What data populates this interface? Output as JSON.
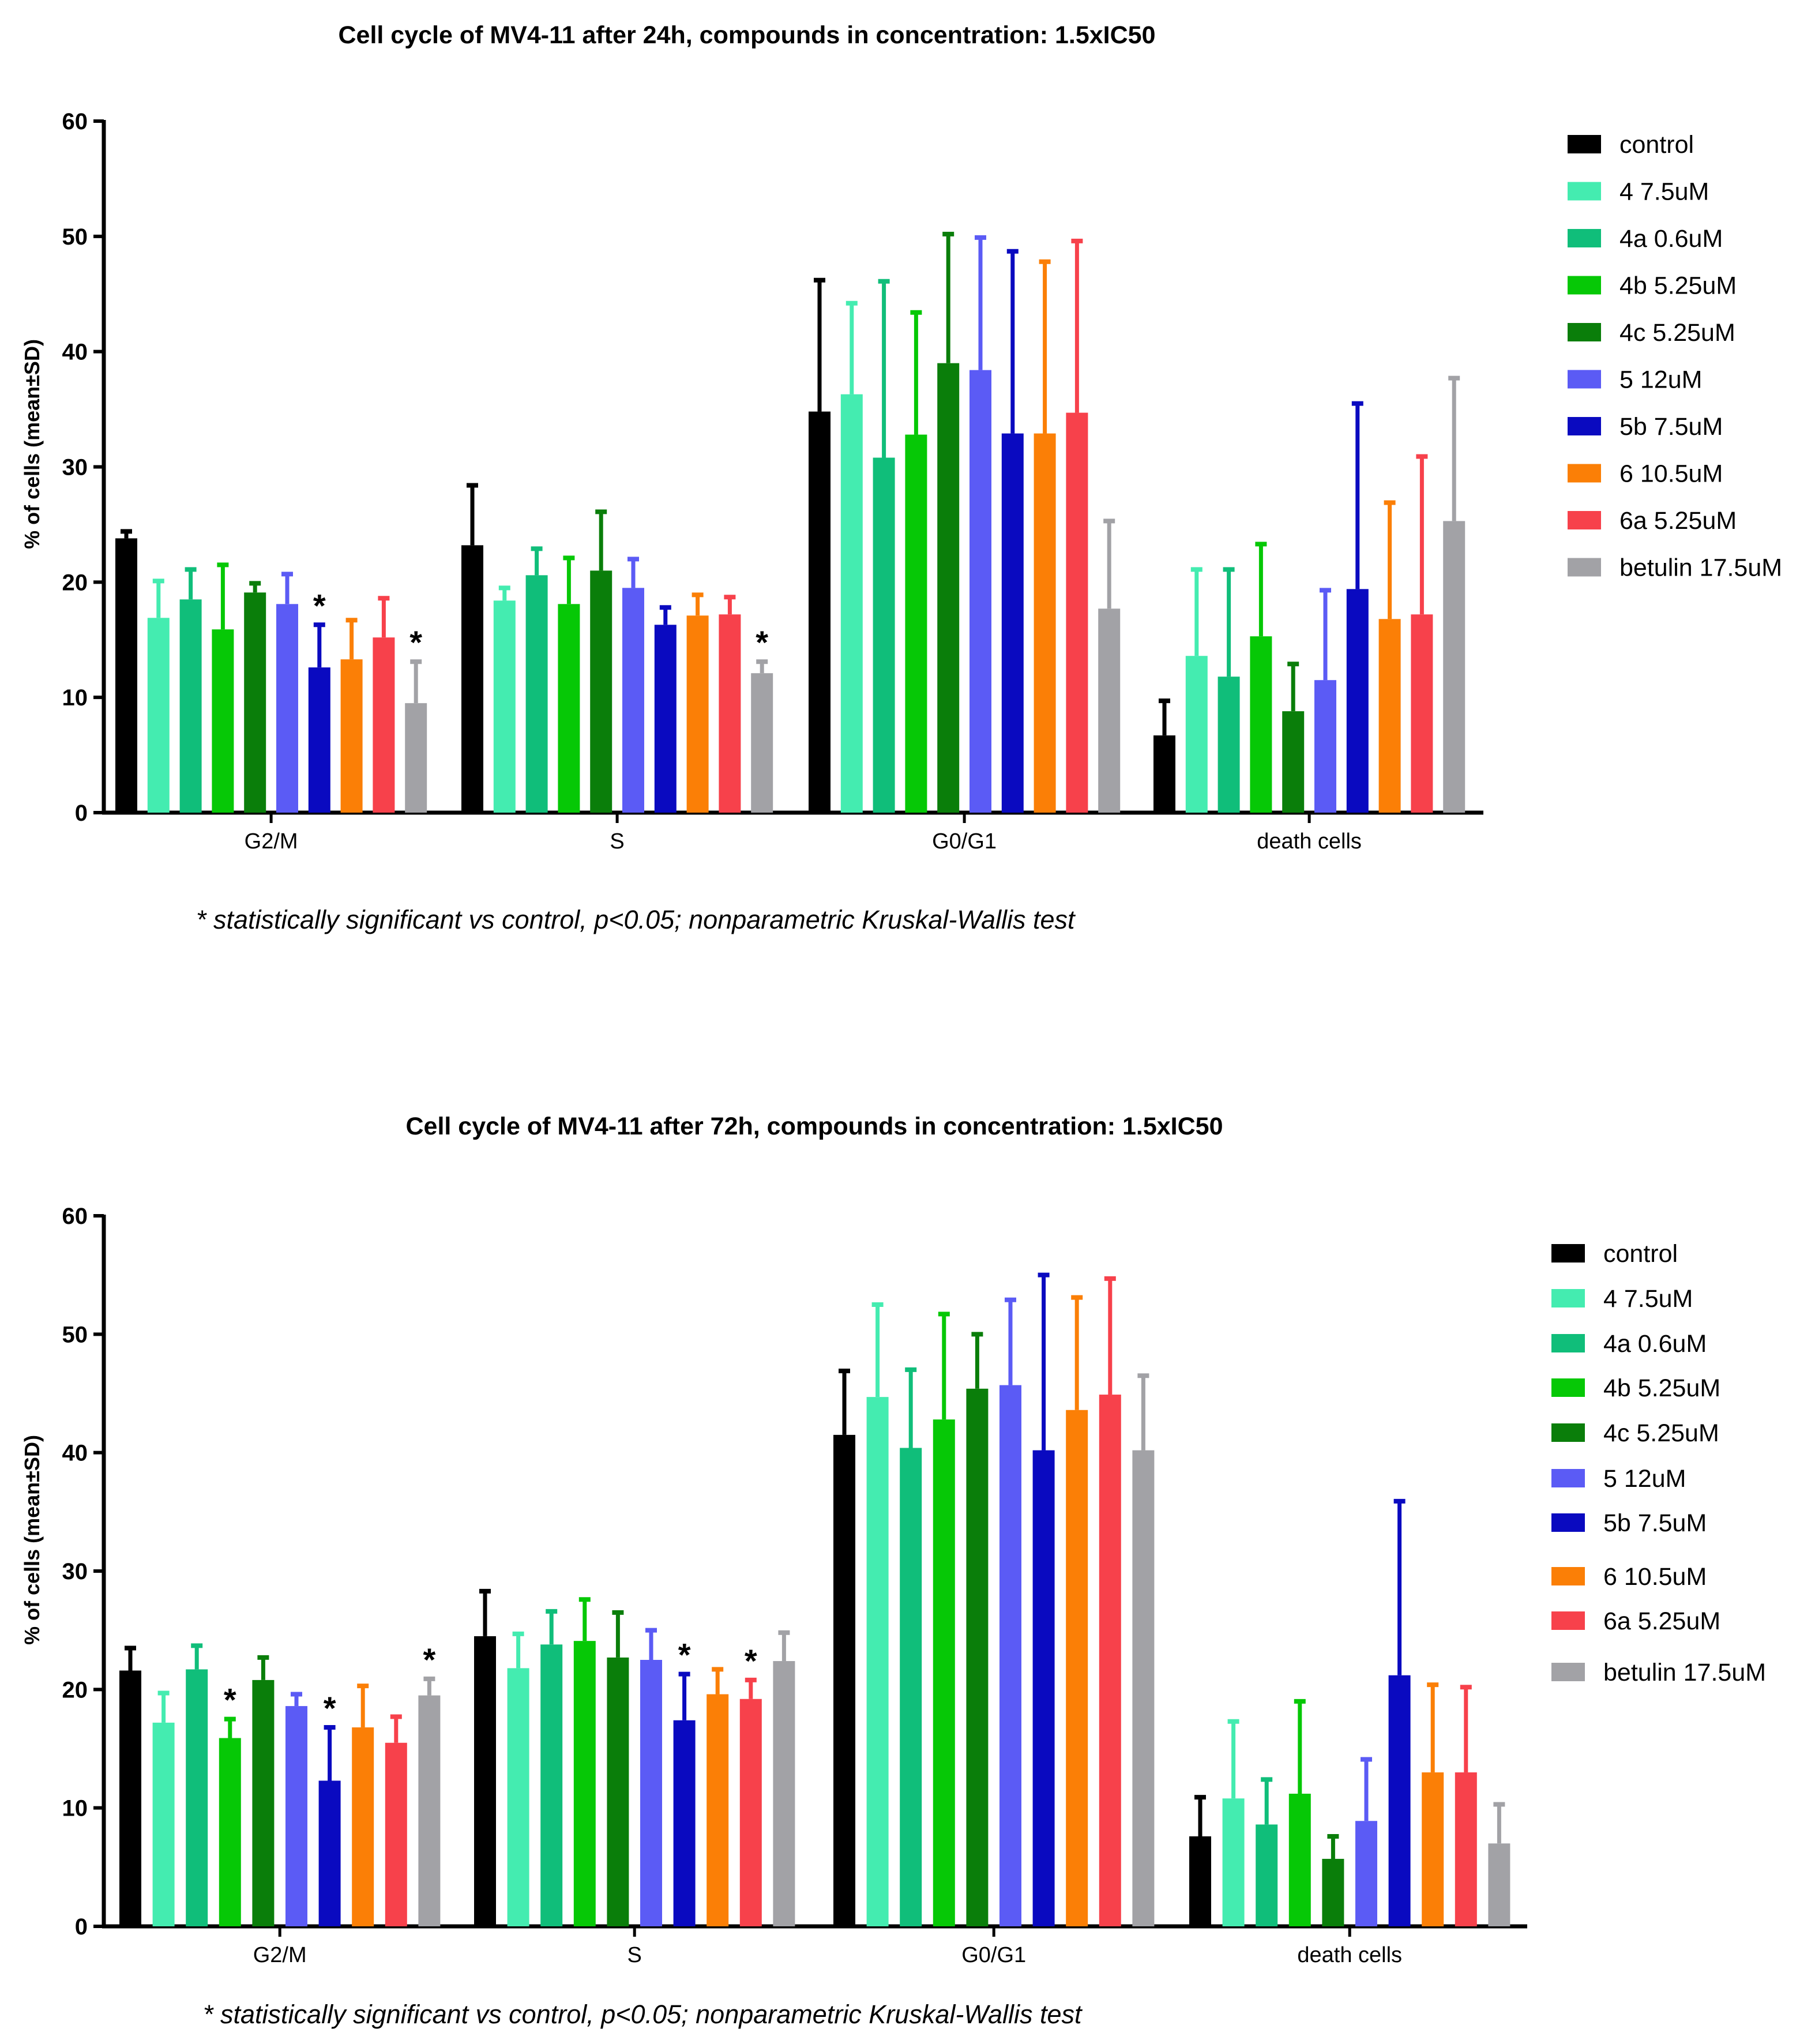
{
  "chart_data": [
    {
      "type": "bar",
      "title": "Cell cycle of  MV4-11 after 24h, compounds in concentration: 1.5xIC50",
      "xlabel": "",
      "ylabel": "% of cells (mean±SD)",
      "ylim": [
        0,
        60
      ],
      "yticks": [
        0,
        10,
        20,
        30,
        40,
        50,
        60
      ],
      "categories": [
        "G2/M",
        "S",
        "G0/G1",
        "death cells"
      ],
      "legend_position": "right",
      "footnote": "* statistically significant vs control, p<0.05; nonparametric Kruskal-Wallis test",
      "series": [
        {
          "name": "control",
          "color": "#000000",
          "values": [
            23.8,
            23.2,
            34.8,
            6.7
          ],
          "errors": [
            0.6,
            5.2,
            11.4,
            3.0
          ]
        },
        {
          "name": "4  7.5uM",
          "color": "#44ecb0",
          "values": [
            16.9,
            18.4,
            36.3,
            13.6
          ],
          "errors": [
            3.2,
            1.1,
            7.9,
            7.5
          ]
        },
        {
          "name": "4a 0.6uM",
          "color": "#10be7a",
          "values": [
            18.5,
            20.6,
            30.8,
            11.8
          ],
          "errors": [
            2.6,
            2.3,
            15.3,
            9.3
          ]
        },
        {
          "name": "4b 5.25uM",
          "color": "#06c806",
          "values": [
            15.9,
            18.1,
            32.8,
            15.3
          ],
          "errors": [
            5.6,
            4.0,
            10.6,
            8.0
          ]
        },
        {
          "name": "4c 5.25uM",
          "color": "#0a7e0a",
          "values": [
            19.1,
            21.0,
            39.0,
            8.8
          ],
          "errors": [
            0.8,
            5.1,
            11.2,
            4.1
          ]
        },
        {
          "name": "5  12uM",
          "color": "#5b5bf5",
          "values": [
            18.1,
            19.5,
            38.4,
            11.5
          ],
          "errors": [
            2.6,
            2.5,
            11.5,
            7.8
          ]
        },
        {
          "name": "5b 7.5uM",
          "color": "#0a0ac0",
          "values": [
            12.6,
            16.3,
            32.9,
            19.4
          ],
          "errors": [
            3.7,
            1.5,
            15.8,
            16.1
          ]
        },
        {
          "name": "6  10.5uM",
          "color": "#fb7f06",
          "values": [
            13.3,
            17.1,
            32.9,
            16.8
          ],
          "errors": [
            3.4,
            1.8,
            14.9,
            10.1
          ]
        },
        {
          "name": "6a 5.25uM",
          "color": "#f7414b",
          "values": [
            15.2,
            17.2,
            34.7,
            17.2
          ],
          "errors": [
            3.4,
            1.5,
            14.9,
            13.7
          ]
        },
        {
          "name": "betulin 17.5uM",
          "color": "#a2a2a6",
          "values": [
            9.5,
            12.1,
            17.7,
            25.3
          ],
          "errors": [
            3.6,
            1.0,
            7.6,
            12.4
          ]
        }
      ],
      "significance": [
        {
          "category": "G2/M",
          "series": "5b 7.5uM",
          "label": "*"
        },
        {
          "category": "G2/M",
          "series": "betulin 17.5uM",
          "label": "*"
        },
        {
          "category": "S",
          "series": "betulin 17.5uM",
          "label": "*"
        }
      ]
    },
    {
      "type": "bar",
      "title": "Cell cycle of MV4-11 after 72h, compounds in concentration: 1.5xIC50",
      "xlabel": "",
      "ylabel": "% of cells (mean±SD)",
      "ylim": [
        0,
        60
      ],
      "yticks": [
        0,
        10,
        20,
        30,
        40,
        50,
        60
      ],
      "categories": [
        "G2/M",
        "S",
        "G0/G1",
        "death cells"
      ],
      "legend_position": "right",
      "footnote": "* statistically significant vs control, p<0.05; nonparametric Kruskal-Wallis test",
      "series": [
        {
          "name": "control",
          "color": "#000000",
          "values": [
            21.6,
            24.5,
            41.5,
            7.6
          ],
          "errors": [
            1.9,
            3.8,
            5.4,
            3.3
          ]
        },
        {
          "name": "4   7.5uM",
          "color": "#44ecb0",
          "values": [
            17.2,
            21.8,
            44.7,
            10.8
          ],
          "errors": [
            2.5,
            2.9,
            7.8,
            6.5
          ]
        },
        {
          "name": "4a 0.6uM",
          "color": "#10be7a",
          "values": [
            21.7,
            23.8,
            40.4,
            8.6
          ],
          "errors": [
            2.0,
            2.8,
            6.6,
            3.8
          ]
        },
        {
          "name": "4b 5.25uM",
          "color": "#06c806",
          "values": [
            15.9,
            24.1,
            42.8,
            11.2
          ],
          "errors": [
            1.6,
            3.5,
            8.9,
            7.8
          ]
        },
        {
          "name": "4c 5.25uM",
          "color": "#0a7e0a",
          "values": [
            20.8,
            22.7,
            45.4,
            5.7
          ],
          "errors": [
            1.9,
            3.8,
            4.6,
            1.9
          ]
        },
        {
          "name": "5  12uM",
          "color": "#5b5bf5",
          "values": [
            18.6,
            22.5,
            45.7,
            8.9
          ],
          "errors": [
            1.0,
            2.5,
            7.2,
            5.2
          ]
        },
        {
          "name": "5b 7.5uM",
          "color": "#0a0ac0",
          "values": [
            12.3,
            17.4,
            40.2,
            21.2
          ],
          "errors": [
            4.5,
            3.9,
            14.8,
            14.7
          ]
        },
        {
          "name": "6  10.5uM",
          "color": "#fb7f06",
          "values": [
            16.8,
            19.6,
            43.6,
            13.0
          ],
          "errors": [
            3.5,
            2.1,
            9.5,
            7.4
          ]
        },
        {
          "name": "6a 5.25uM",
          "color": "#f7414b",
          "values": [
            15.5,
            19.2,
            44.9,
            13.0
          ],
          "errors": [
            2.2,
            1.6,
            9.8,
            7.2
          ]
        },
        {
          "name": "betulin 17.5uM",
          "color": "#a2a2a6",
          "values": [
            19.5,
            22.4,
            40.2,
            7.0
          ],
          "errors": [
            1.4,
            2.4,
            6.3,
            3.3
          ]
        }
      ],
      "significance": [
        {
          "category": "G2/M",
          "series": "4b 5.25uM",
          "label": "*"
        },
        {
          "category": "G2/M",
          "series": "5b 7.5uM",
          "label": "*"
        },
        {
          "category": "G2/M",
          "series": "betulin 17.5uM",
          "label": "*"
        },
        {
          "category": "S",
          "series": "5b 7.5uM",
          "label": "*"
        },
        {
          "category": "S",
          "series": "6a 5.25uM",
          "label": "*"
        }
      ]
    }
  ]
}
